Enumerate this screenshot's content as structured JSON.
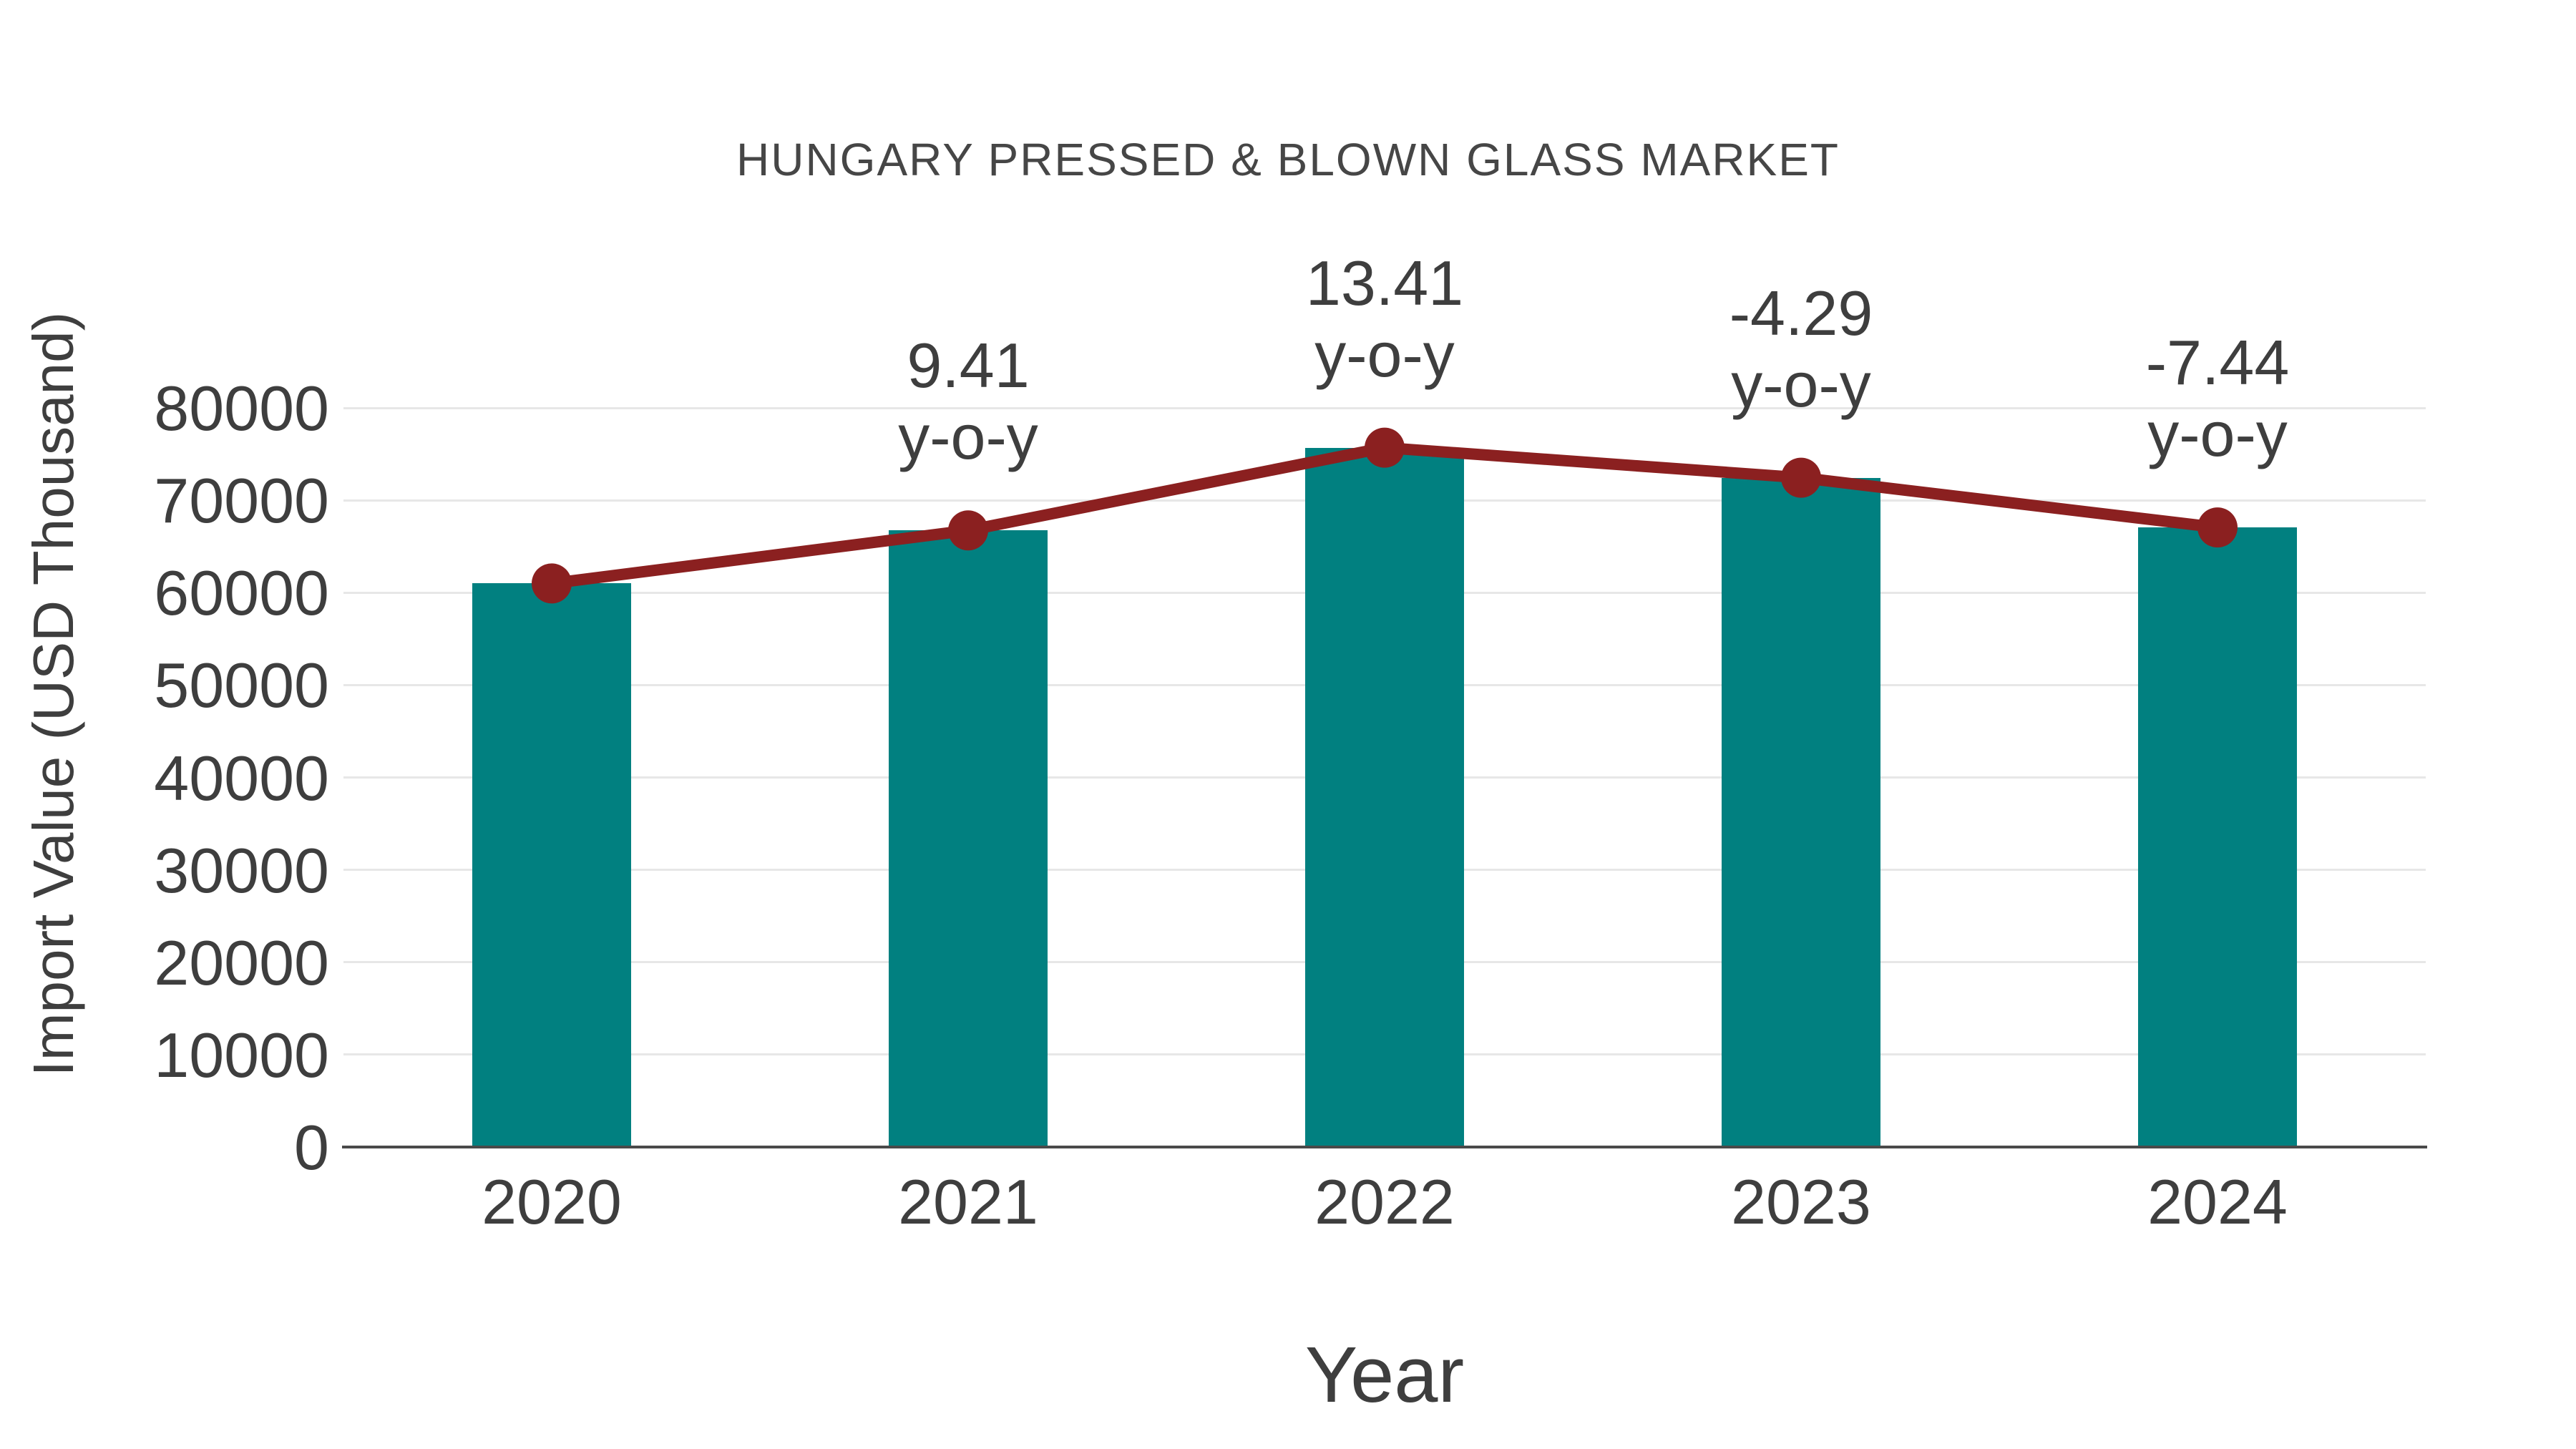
{
  "chart_data": {
    "type": "bar",
    "title": "HUNGARY PRESSED & BLOWN GLASS MARKET",
    "xlabel": "Year",
    "ylabel": "Import Value (USD Thousand)",
    "categories": [
      "2020",
      "2021",
      "2022",
      "2023",
      "2024"
    ],
    "values": [
      61000,
      66740,
      75690,
      72443,
      67053
    ],
    "overlay_line_through_bar_tops": true,
    "annotations": [
      {
        "category": "2021",
        "value": "9.41",
        "suffix": "y-o-y"
      },
      {
        "category": "2022",
        "value": "13.41",
        "suffix": "y-o-y"
      },
      {
        "category": "2023",
        "value": "-4.29",
        "suffix": "y-o-y"
      },
      {
        "category": "2024",
        "value": "-7.44",
        "suffix": "y-o-y"
      }
    ],
    "ylim": [
      0,
      80000
    ],
    "yticks": [
      0,
      10000,
      20000,
      30000,
      40000,
      50000,
      60000,
      70000,
      80000
    ],
    "grid": true,
    "legend": "none",
    "colors": {
      "bar": "#018080",
      "line": "#8B2020",
      "marker": "#8B2020",
      "text": "#3e3e3e",
      "gridline": "#e7e7e7",
      "axis_line": "#4a4a4a",
      "background": "#ffffff"
    }
  }
}
